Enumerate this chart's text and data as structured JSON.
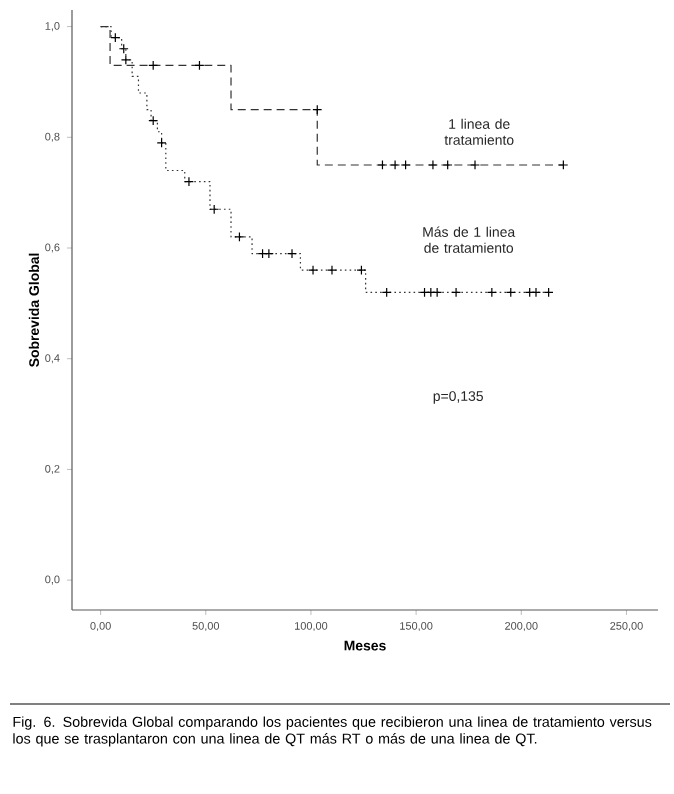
{
  "chart_data": {
    "type": "step",
    "xlabel": "Meses",
    "ylabel": "Sobrevida Global",
    "xlim": [
      -13.6,
      265
    ],
    "ylim": [
      -0.054,
      1.03
    ],
    "xticks": [
      {
        "value": 0,
        "label": "0,00"
      },
      {
        "value": 50,
        "label": "50,00"
      },
      {
        "value": 100,
        "label": "100,00"
      },
      {
        "value": 150,
        "label": "150,00"
      },
      {
        "value": 200,
        "label": "200,00"
      },
      {
        "value": 250,
        "label": "250,00"
      }
    ],
    "yticks": [
      {
        "value": 0,
        "label": "0,0"
      },
      {
        "value": 0.2,
        "label": "0,2"
      },
      {
        "value": 0.4,
        "label": "0,4"
      },
      {
        "value": 0.6,
        "label": "0,6"
      },
      {
        "value": 0.8,
        "label": "0,8"
      },
      {
        "value": 1.0,
        "label": "1,0"
      }
    ],
    "series": [
      {
        "name": "1 linea de tratamiento",
        "color": "#333333",
        "line_style": "dashed",
        "x": [
          0,
          4.5,
          62,
          103,
          220
        ],
        "values": [
          1.0,
          0.93,
          0.85,
          0.75,
          0.75
        ]
      },
      {
        "name": "Más de 1 linea de tratamiento",
        "color": "#333333",
        "line_style": "dotted",
        "x": [
          0,
          5,
          10,
          12,
          15,
          18,
          22,
          24,
          27,
          29,
          31,
          40,
          52,
          62,
          72,
          95,
          126,
          213
        ],
        "values": [
          1.0,
          0.98,
          0.96,
          0.94,
          0.91,
          0.88,
          0.85,
          0.83,
          0.81,
          0.79,
          0.74,
          0.72,
          0.67,
          0.62,
          0.59,
          0.56,
          0.52,
          0.52
        ]
      },
      {
        "type": "scatter",
        "color": "#000000",
        "marker": "cross",
        "x": [
          25,
          47,
          103,
          134,
          140,
          145,
          158,
          165,
          178,
          220
        ],
        "values": [
          0.93,
          0.93,
          0.85,
          0.75,
          0.75,
          0.75,
          0.75,
          0.75,
          0.75,
          0.75
        ]
      },
      {
        "type": "scatter",
        "color": "#000000",
        "marker": "cross",
        "x": [
          7,
          11,
          12,
          25,
          29,
          42,
          54,
          66,
          77,
          80,
          91,
          101,
          110,
          124,
          136,
          154,
          157,
          160,
          169,
          186,
          195,
          204,
          207,
          213
        ],
        "values": [
          0.98,
          0.96,
          0.94,
          0.83,
          0.79,
          0.72,
          0.67,
          0.62,
          0.59,
          0.59,
          0.59,
          0.56,
          0.56,
          0.56,
          0.52,
          0.52,
          0.52,
          0.52,
          0.52,
          0.52,
          0.52,
          0.52,
          0.52,
          0.52
        ]
      }
    ],
    "annotations": [
      "p=0,135",
      "Fig. 6. Sobrevida Global comparando los pacientes que recibieron una linea de tratamiento versus los que se trasplantaron con una linea de QT más RT o más de una linea de QT."
    ]
  }
}
